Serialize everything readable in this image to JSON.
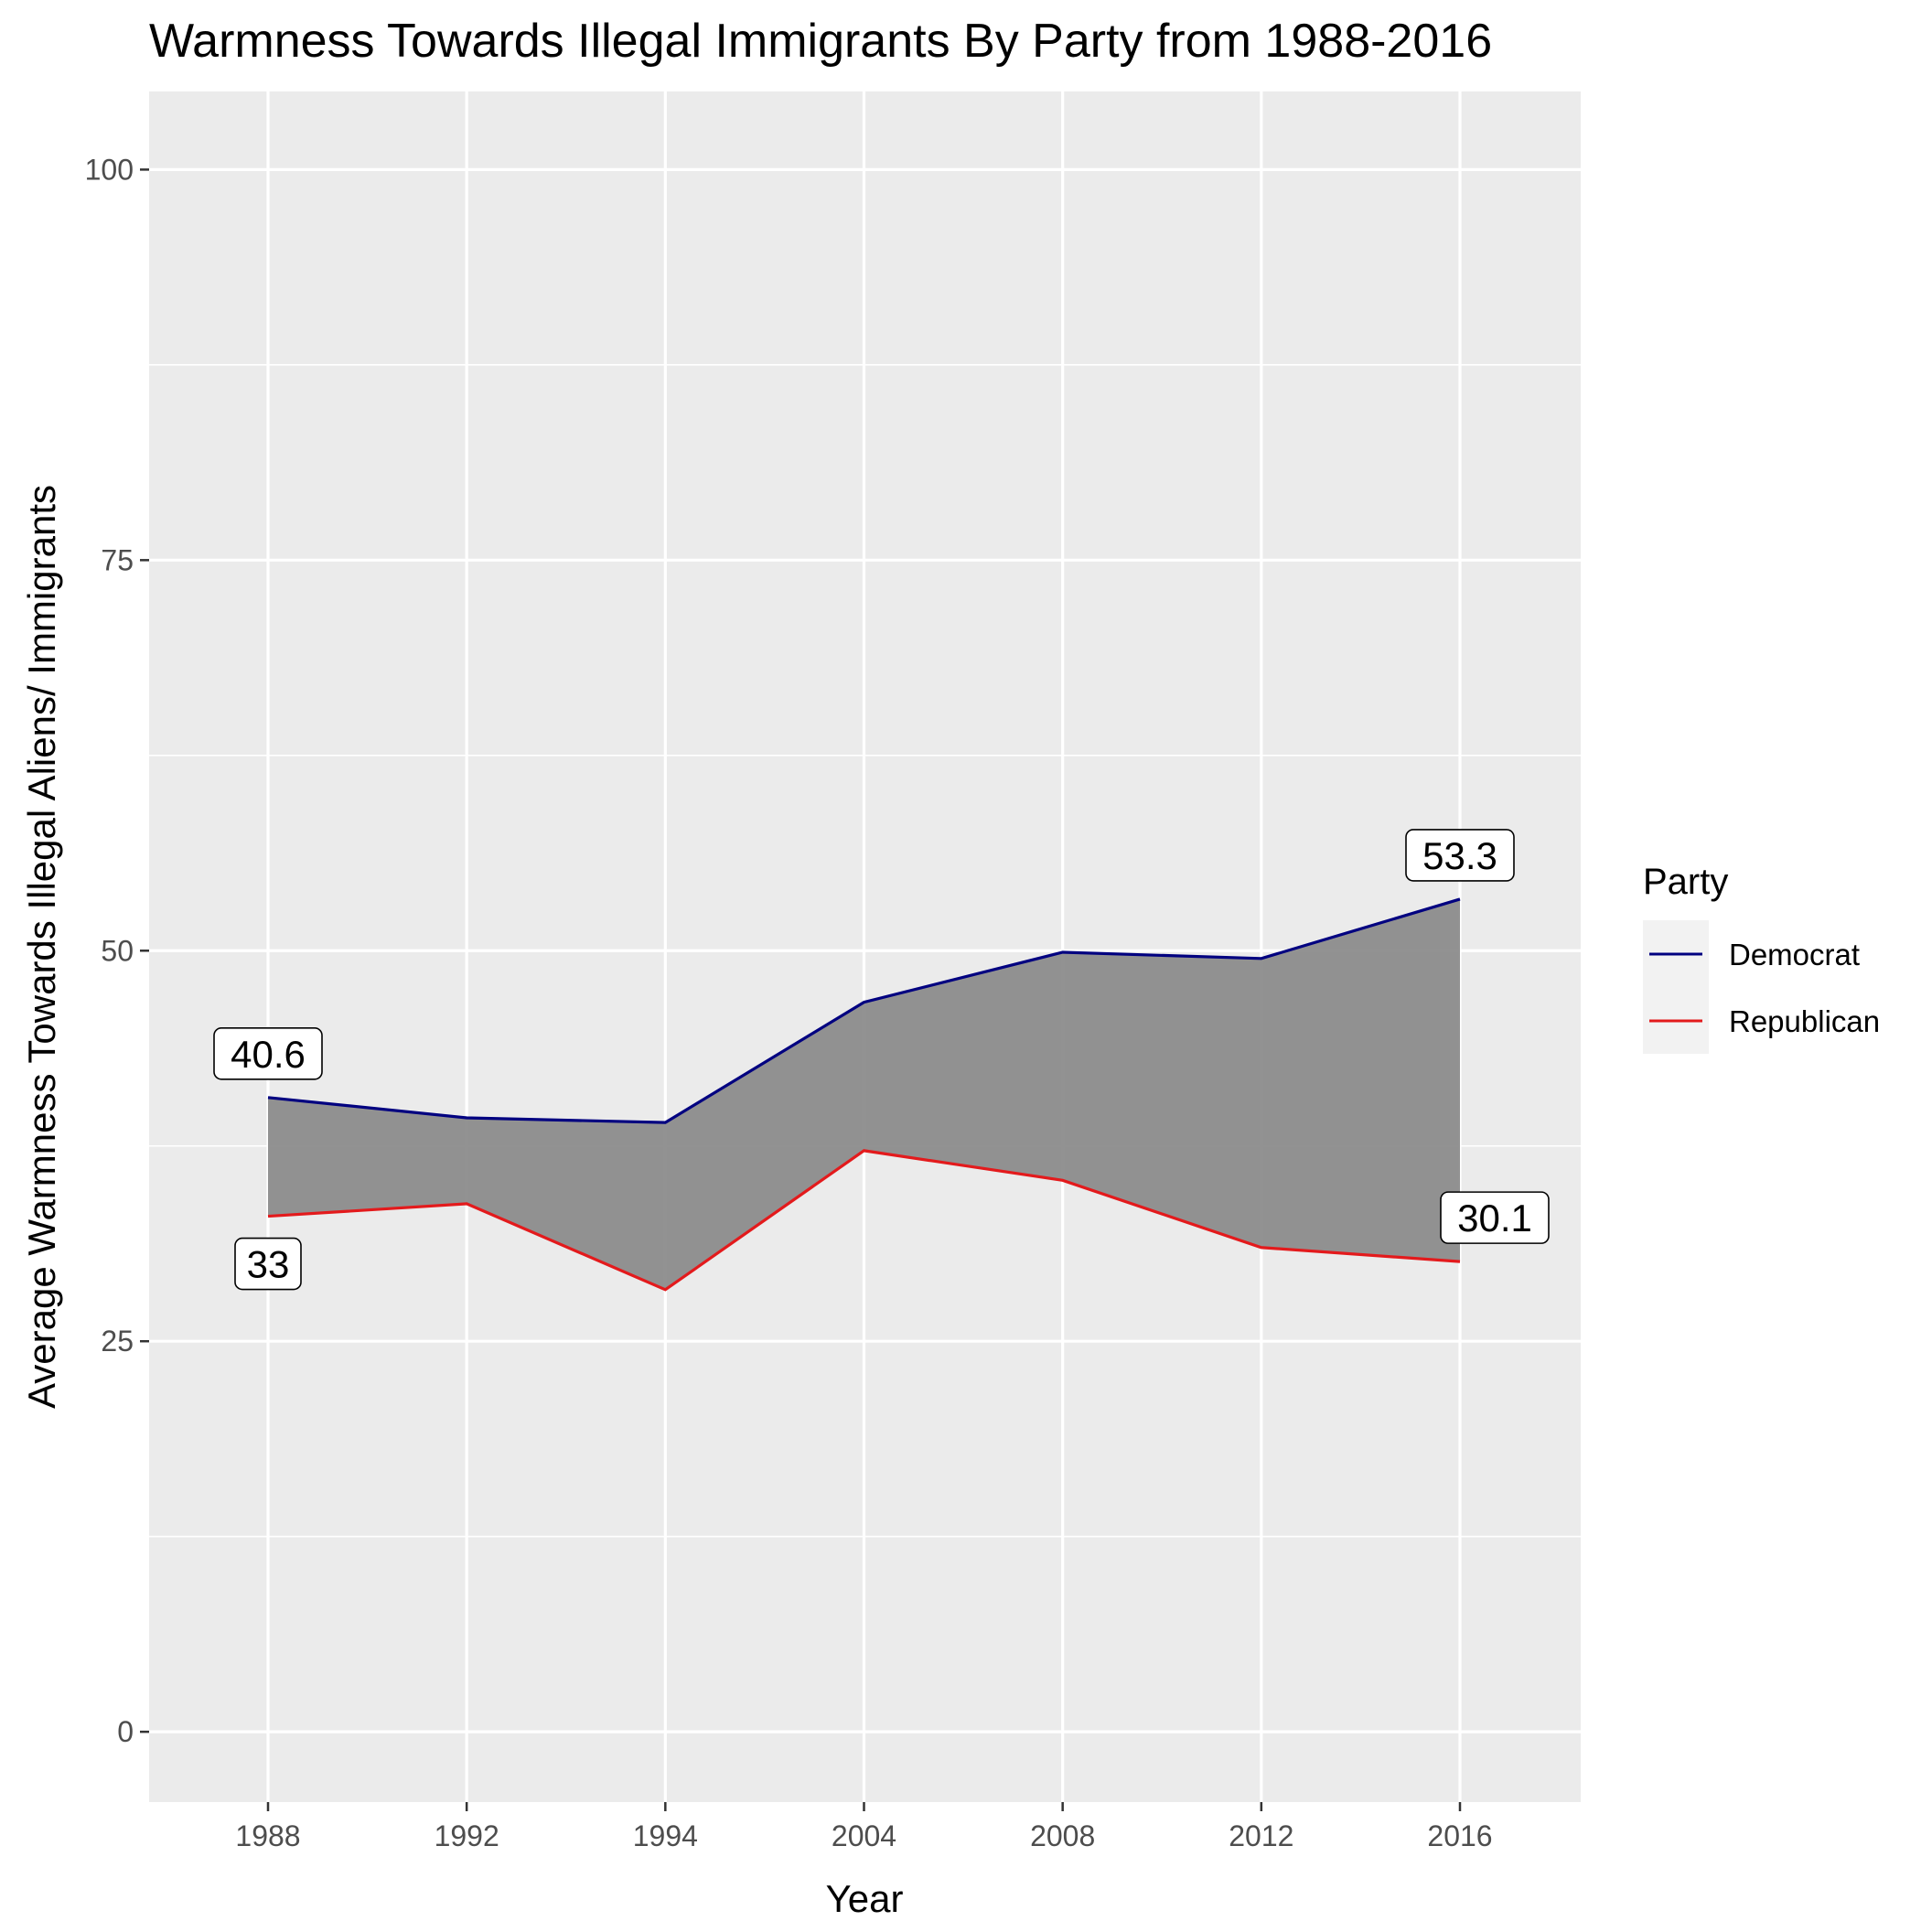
{
  "chart_data": {
    "type": "area",
    "title": "Warmness Towards Illegal Immigrants By Party from 1988-2016",
    "xlabel": "Year",
    "ylabel": "Average Warmness Towards Illegal Aliens/ Immigrants",
    "categories": [
      "1988",
      "1992",
      "1994",
      "2004",
      "2008",
      "2012",
      "2016"
    ],
    "ylim": [
      -4.5,
      105
    ],
    "yticks": [
      0,
      25,
      50,
      75,
      100
    ],
    "grid": true,
    "legend_position": "right",
    "legend_title": "Party",
    "series": [
      {
        "name": "Democrat",
        "color": "#000080",
        "values": [
          40.6,
          39.3,
          39.0,
          46.7,
          49.9,
          49.5,
          53.3
        ]
      },
      {
        "name": "Republican",
        "color": "#e31a1c",
        "values": [
          33.0,
          33.8,
          28.3,
          37.2,
          35.3,
          31.0,
          30.1
        ]
      }
    ],
    "ribbon_fill": "#8c8c8c",
    "data_labels": [
      {
        "text": "40.6",
        "category": "1988",
        "series": "Democrat",
        "position": "above"
      },
      {
        "text": "33",
        "category": "1988",
        "series": "Republican",
        "position": "below"
      },
      {
        "text": "53.3",
        "category": "2016",
        "series": "Democrat",
        "position": "above"
      },
      {
        "text": "30.1",
        "category": "2016",
        "series": "Republican",
        "position": "above-right"
      }
    ]
  }
}
